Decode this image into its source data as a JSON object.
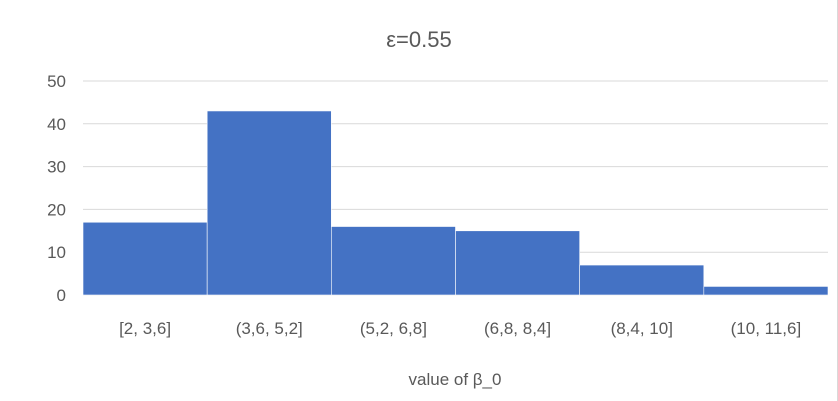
{
  "chart_data": {
    "type": "bar",
    "title": "ε=0.55",
    "xlabel": "value of β_0",
    "ylabel": "",
    "categories": [
      "[2, 3,6]",
      "(3,6, 5,2]",
      "(5,2, 6,8]",
      "(6,8, 8,4]",
      "(8,4, 10]",
      "(10, 11,6]"
    ],
    "values": [
      17,
      43,
      16,
      15,
      7,
      2
    ],
    "ylim": [
      0,
      50
    ],
    "yticks": [
      0,
      10,
      20,
      30,
      40,
      50
    ],
    "grid": true,
    "legend": "none",
    "bar_color": "#4472c4",
    "grid_color": "#d9d9d9"
  }
}
